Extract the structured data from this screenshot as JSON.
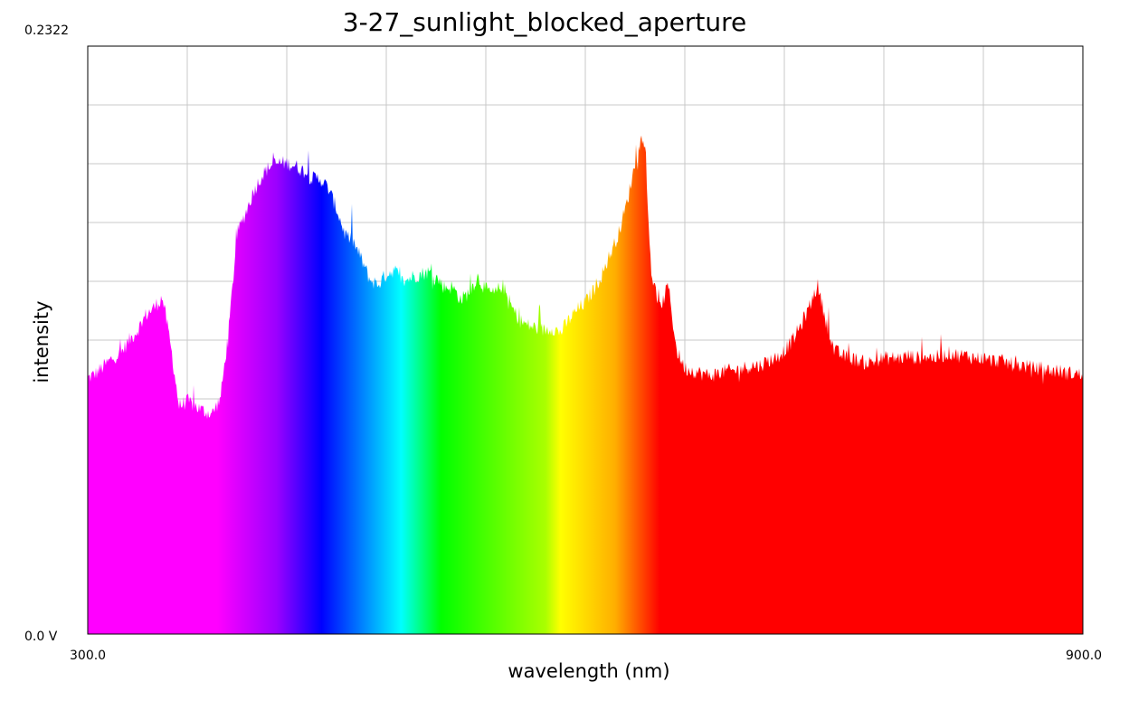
{
  "chart_data": {
    "type": "area",
    "title": "3-27_sunlight_blocked_aperture",
    "xlabel": "wavelength (nm)",
    "ylabel": "intensity",
    "xlim": [
      300.0,
      900.0
    ],
    "ylim": [
      0.0,
      0.2322
    ],
    "x_tick_labels": [
      "300.0",
      "900.0"
    ],
    "y_tick_labels": [
      "0.0 V",
      "0.2322"
    ],
    "grid": true,
    "fill": "visible-spectrum gradient",
    "series": [
      {
        "x": [
          300,
          305,
          310,
          315,
          320,
          325,
          330,
          335,
          340,
          345,
          350,
          355,
          360,
          365,
          370,
          375,
          380,
          385,
          390,
          395,
          400,
          405,
          410,
          415,
          420,
          425,
          430,
          435,
          440,
          445,
          450,
          455,
          460,
          465,
          470,
          475,
          480,
          485,
          490,
          495,
          500,
          505,
          510,
          515,
          520,
          525,
          530,
          535,
          540,
          545,
          550,
          555,
          560,
          565,
          570,
          575,
          580,
          585,
          590,
          595,
          600,
          605,
          610,
          615,
          620,
          625,
          630,
          635,
          640,
          645,
          650,
          655,
          660,
          665,
          670,
          675,
          680,
          685,
          690,
          695,
          700,
          705,
          710,
          715,
          720,
          725,
          730,
          735,
          740,
          745,
          750,
          755,
          760,
          765,
          770,
          775,
          780,
          785,
          790,
          795,
          800,
          805,
          810,
          815,
          820,
          825,
          830,
          835,
          840,
          845,
          850,
          855,
          860,
          865,
          870,
          875,
          880,
          885,
          890,
          895,
          900
        ],
        "values": [
          0.101,
          0.103,
          0.106,
          0.109,
          0.111,
          0.116,
          0.12,
          0.126,
          0.129,
          0.133,
          0.114,
          0.09,
          0.092,
          0.09,
          0.088,
          0.087,
          0.093,
          0.12,
          0.158,
          0.166,
          0.175,
          0.181,
          0.185,
          0.186,
          0.186,
          0.185,
          0.183,
          0.18,
          0.18,
          0.176,
          0.168,
          0.158,
          0.155,
          0.148,
          0.14,
          0.138,
          0.142,
          0.144,
          0.139,
          0.141,
          0.142,
          0.143,
          0.141,
          0.137,
          0.137,
          0.132,
          0.135,
          0.141,
          0.136,
          0.134,
          0.138,
          0.13,
          0.124,
          0.122,
          0.121,
          0.12,
          0.121,
          0.119,
          0.124,
          0.128,
          0.131,
          0.136,
          0.142,
          0.15,
          0.158,
          0.17,
          0.186,
          0.198,
          0.142,
          0.128,
          0.138,
          0.112,
          0.105,
          0.104,
          0.103,
          0.102,
          0.103,
          0.104,
          0.104,
          0.105,
          0.106,
          0.106,
          0.108,
          0.109,
          0.112,
          0.116,
          0.122,
          0.129,
          0.138,
          0.124,
          0.112,
          0.11,
          0.109,
          0.108,
          0.107,
          0.108,
          0.109,
          0.109,
          0.109,
          0.11,
          0.109,
          0.11,
          0.109,
          0.11,
          0.111,
          0.11,
          0.11,
          0.109,
          0.109,
          0.108,
          0.108,
          0.107,
          0.106,
          0.106,
          0.105,
          0.105,
          0.104,
          0.104,
          0.103,
          0.103,
          0.102
        ]
      }
    ]
  }
}
